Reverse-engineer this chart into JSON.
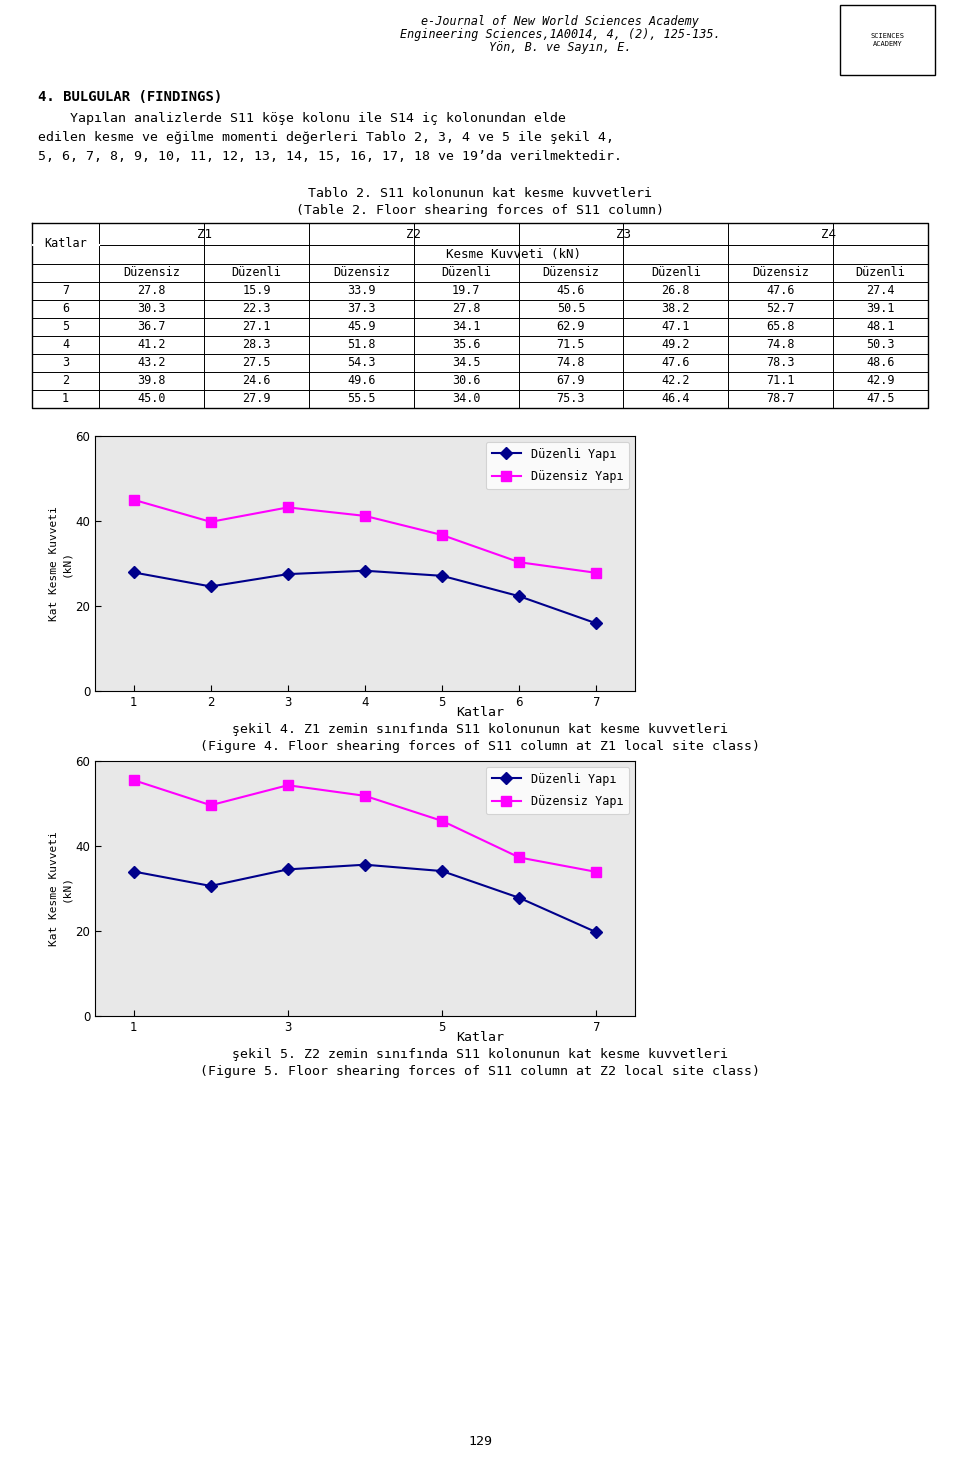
{
  "header_line1": "e-Journal of New World Sciences Academy",
  "header_line2": "Engineering Sciences,1A0014, 4, (2), 125-135.",
  "header_line3": "Yön, B. ve Sayın, E.",
  "section_title": "4. BULGULAR (FINDINGS)",
  "para_line1": "    Yapılan analizlerde S11 köşe kolonu ile S14 iç kolonundan elde",
  "para_line2": "edilen kesme ve eğilme momenti değerleri Tablo 2, 3, 4 ve 5 ile şekil 4,",
  "para_line3": "5, 6, 7, 8, 9, 10, 11, 12, 13, 14, 15, 16, 17, 18 ve 19’da verilmektedir.",
  "table_title1": "Tablo 2. S11 kolonunun kat kesme kuvvetleri",
  "table_title2": "(Table 2. Floor shearing forces of S11 column)",
  "table_rows": [
    [
      7,
      27.8,
      15.9,
      33.9,
      19.7,
      45.6,
      26.8,
      47.6,
      27.4
    ],
    [
      6,
      30.3,
      22.3,
      37.3,
      27.8,
      50.5,
      38.2,
      52.7,
      39.1
    ],
    [
      5,
      36.7,
      27.1,
      45.9,
      34.1,
      62.9,
      47.1,
      65.8,
      48.1
    ],
    [
      4,
      41.2,
      28.3,
      51.8,
      35.6,
      71.5,
      49.2,
      74.8,
      50.3
    ],
    [
      3,
      43.2,
      27.5,
      54.3,
      34.5,
      74.8,
      47.6,
      78.3,
      48.6
    ],
    [
      2,
      39.8,
      24.6,
      49.6,
      30.6,
      67.9,
      42.2,
      71.1,
      42.9
    ],
    [
      1,
      45.0,
      27.9,
      55.5,
      34.0,
      75.3,
      46.4,
      78.7,
      47.5
    ]
  ],
  "chart1_x": [
    1,
    2,
    3,
    4,
    5,
    6,
    7
  ],
  "chart1_duzenli": [
    27.9,
    24.6,
    27.5,
    28.3,
    27.1,
    22.3,
    15.9
  ],
  "chart1_duzensiz": [
    45.0,
    39.8,
    43.2,
    41.2,
    36.7,
    30.3,
    27.8
  ],
  "chart1_xticks": [
    1,
    2,
    3,
    4,
    5,
    6,
    7
  ],
  "chart1_yticks": [
    0,
    20,
    40,
    60
  ],
  "chart1_ylim": [
    0,
    60
  ],
  "chart2_x": [
    1,
    2,
    3,
    4,
    5,
    6,
    7
  ],
  "chart2_duzenli": [
    34.0,
    30.6,
    34.5,
    35.6,
    34.1,
    27.8,
    19.7
  ],
  "chart2_duzensiz": [
    55.5,
    49.6,
    54.3,
    51.8,
    45.9,
    37.3,
    33.9
  ],
  "chart2_xticks": [
    1,
    3,
    5,
    7
  ],
  "chart2_yticks": [
    0,
    20,
    40,
    60
  ],
  "chart2_ylim": [
    0,
    60
  ],
  "legend_duzenli_label": "Düzenli Yapı",
  "legend_duzensiz_label": "Düzensiz Yapı",
  "fig4_caption1": "şekil 4. Z1 zemin sınıfında S11 kolonunun kat kesme kuvvetleri",
  "fig4_caption2": "(Figure 4. Floor shearing forces of S11 column at Z1 local site class)",
  "fig5_caption1": "şekil 5. Z2 zemin sınıfında S11 kolonunun kat kesme kuvvetleri",
  "fig5_caption2": "(Figure 5. Floor shearing forces of S11 column at Z2 local site class)",
  "xlabel_katlar": "Katlar",
  "ylabel_chart": "Kat Kesme Kuvveti\n(kN)",
  "page_number": "129",
  "bg_color": "#ffffff",
  "line_duzenli_color": "#00008B",
  "line_duzensiz_color": "#FF00FF",
  "chart_bg": "#e8e8e8"
}
